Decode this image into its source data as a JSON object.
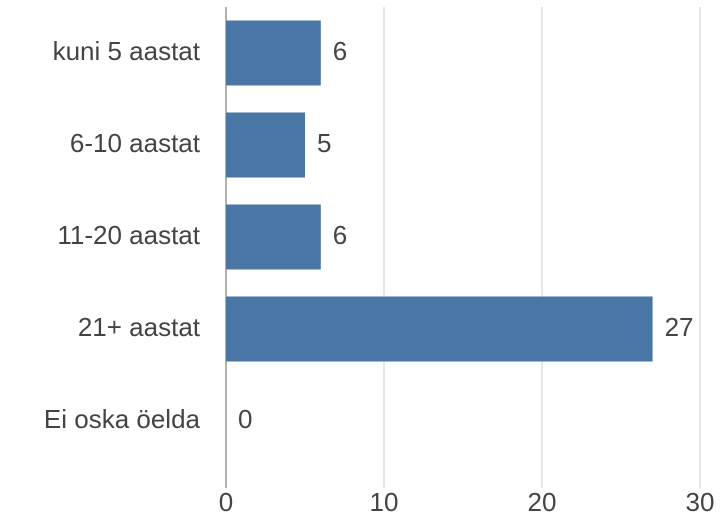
{
  "chart_data": {
    "type": "bar",
    "horizontal": true,
    "categories": [
      "kuni 5 aastat",
      "6-10 aastat",
      "11-20 aastat",
      "21+ aastat",
      "Ei oska öelda"
    ],
    "values": [
      6,
      5,
      6,
      27,
      0
    ],
    "color": "#4a76a6",
    "xlim": [
      0,
      30
    ],
    "xticks": [
      0,
      10,
      20,
      30
    ],
    "grid": true
  }
}
